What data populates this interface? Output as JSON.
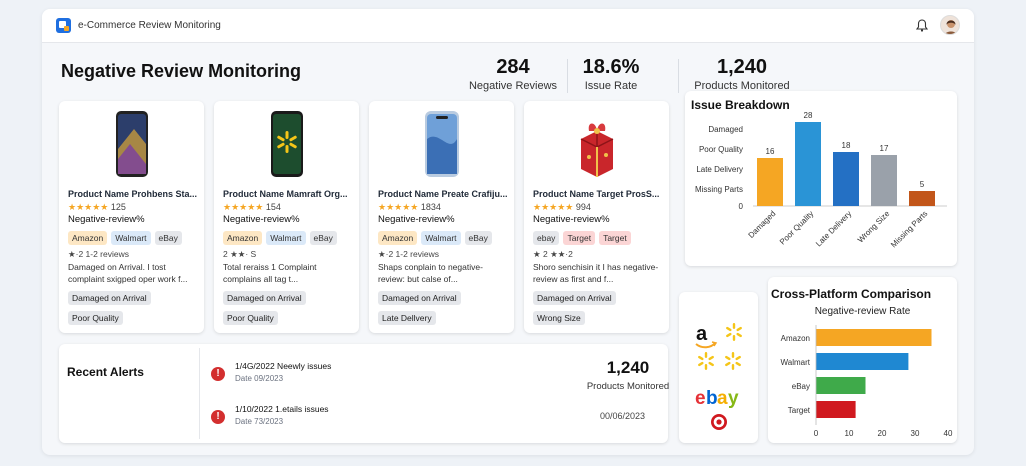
{
  "app": {
    "title": "e-Commerce Review Monitoring"
  },
  "page": {
    "title": "Negative Review Monitoring"
  },
  "stats": [
    {
      "value": "284",
      "label": "Negative Reviews"
    },
    {
      "value": "18.6%",
      "label": "Issue Rate"
    },
    {
      "value": "1,240",
      "label": "Products Monitored"
    }
  ],
  "products": [
    {
      "name": "Product Name Prohbens Sta...",
      "stars": "★★★★★",
      "rating_count": "125",
      "negative": "Negative-review%",
      "badges": [
        "Amazon",
        "Walmart",
        "eBay"
      ],
      "summary": "★·2  1-2 reviews",
      "desc": "Damaged on Arrival. I tost complaint sxigped oper work f...",
      "tags": [
        "Damaged on Arrival",
        "Poor Quality"
      ]
    },
    {
      "name": "Product Name Mamraft Org...",
      "stars": "★★★★★",
      "rating_count": "154",
      "negative": "Negative-review%",
      "badges": [
        "Amazon",
        "Walmart",
        "eBay"
      ],
      "summary": "2 ★★· S",
      "desc": "Total reraiss 1 Complaint complains all tag t...",
      "tags": [
        "Damaged on Arrival",
        "Poor Quality"
      ]
    },
    {
      "name": "Product Name Preate Crafiju...",
      "stars": "★★★★★",
      "rating_count": "1834",
      "negative": "Negative-review%",
      "badges": [
        "Amazon",
        "Walmart",
        "eBay"
      ],
      "summary": "★·2  1-2 reviews",
      "desc": "Shaps conplain to negative-review: but calse of...",
      "tags": [
        "Damaged on Arrival",
        "Late Dellvery"
      ]
    },
    {
      "name": "Product Name Target ProsS...",
      "stars": "★★★★★",
      "rating_count": "994",
      "negative": "Negative-review%",
      "badges": [
        "ebay",
        "Target",
        "Target"
      ],
      "summary": "★ 2 ★★·2",
      "desc": "Shoro senchisin it I has negative-review as first and f...",
      "tags": [
        "Damaged on Arrival",
        "Wrong Size"
      ]
    }
  ],
  "alerts": {
    "title": "Recent Alerts",
    "items": [
      {
        "title": "1/4G/2022 Neewly issues",
        "date": "Date 09/2023"
      },
      {
        "title": "1/10/2022 1.etails issues",
        "date": "Date 73/2023"
      }
    ],
    "stat_value": "1,240",
    "stat_label": "Products Monitored",
    "footer_date": "00/06/2023"
  },
  "colors": {
    "amazon": "#f5a623",
    "walmart": "#1f88d2",
    "ebay": "#3faa4a",
    "target": "#d0191f",
    "lateDelivery": "#2470c4",
    "wrongSize": "#9aa1aa",
    "missing": "#c2561a",
    "damaged": "#f5a623",
    "poorQuality": "#2a94d6"
  },
  "issue_breakdown": {
    "title": "Issue Breakdown",
    "chart_data": {
      "type": "bar",
      "categories": [
        "Damaged",
        "Poor Quality",
        "Late Delivery",
        "Wrong Size",
        "Missing Parts"
      ],
      "values": [
        16,
        28,
        18,
        17,
        5
      ],
      "ylim": [
        0,
        30
      ],
      "row_labels": [
        "Damaged",
        "Poor Quality",
        "Late Delivery",
        "Missing Parts"
      ],
      "y_zero_label": "0"
    }
  },
  "cross_platform": {
    "title": "Cross-Platform Comparison",
    "subtitle": "Negative-review Rate",
    "chart_data": {
      "type": "bar",
      "orientation": "horizontal",
      "categories": [
        "Amazon",
        "Walmart",
        "eBay",
        "Target"
      ],
      "values": [
        35,
        28,
        15,
        12
      ],
      "xlim": [
        0,
        40
      ],
      "xticks": [
        "0",
        "10",
        "20",
        "30",
        "40"
      ]
    }
  },
  "platform_logos": [
    "amazon-logo",
    "walmart-logo",
    "walmart-logo",
    "ebay-logo",
    "target-logo"
  ]
}
